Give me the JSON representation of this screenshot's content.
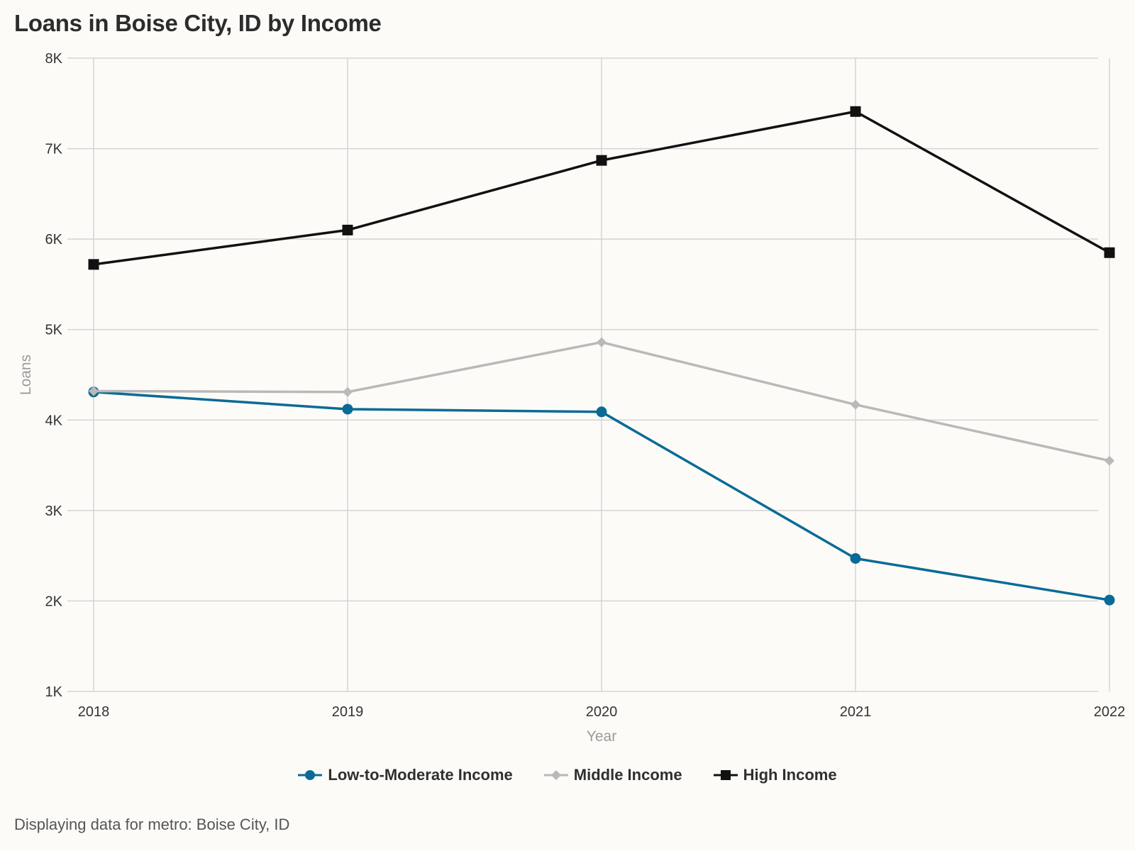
{
  "title": "Loans in Boise City, ID by Income",
  "footnote": "Displaying data for metro: Boise City, ID",
  "chart_data": {
    "type": "line",
    "title": "Loans in Boise City, ID by Income",
    "xlabel": "Year",
    "ylabel": "Loans",
    "x": [
      "2018",
      "2019",
      "2020",
      "2021",
      "2022"
    ],
    "ylim": [
      1000,
      8000
    ],
    "yticks": [
      1000,
      2000,
      3000,
      4000,
      5000,
      6000,
      7000,
      8000
    ],
    "ytick_labels": [
      "1K",
      "2K",
      "3K",
      "4K",
      "5K",
      "6K",
      "7K",
      "8K"
    ],
    "grid": true,
    "legend_position": "bottom",
    "series": [
      {
        "name": "Low-to-Moderate Income",
        "color": "#0a6b96",
        "marker": "circle",
        "values": [
          4310,
          4120,
          4090,
          2470,
          2010
        ]
      },
      {
        "name": "Middle Income",
        "color": "#b9b9b9",
        "marker": "diamond",
        "values": [
          4320,
          4310,
          4860,
          4170,
          3550
        ]
      },
      {
        "name": "High Income",
        "color": "#111111",
        "marker": "square",
        "values": [
          5720,
          6100,
          6870,
          7410,
          5850
        ]
      }
    ]
  }
}
